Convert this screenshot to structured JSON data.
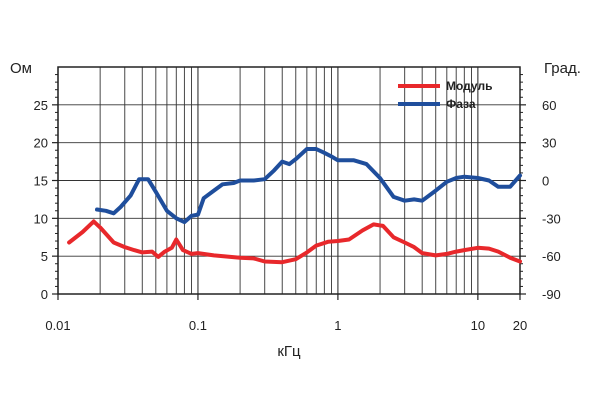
{
  "chart_data": {
    "type": "line",
    "xlabel": "кГц",
    "x_scale": "log",
    "xlim": [
      0.01,
      20
    ],
    "x_ticks": [
      {
        "value": 0.01,
        "label": "0.01"
      },
      {
        "value": 0.1,
        "label": "0.1"
      },
      {
        "value": 1,
        "label": "1"
      },
      {
        "value": 10,
        "label": "10"
      },
      {
        "value": 20,
        "label": "20"
      }
    ],
    "y_left": {
      "label": "Ом",
      "lim": [
        0,
        30
      ],
      "ticks": [
        0,
        5,
        10,
        15,
        20,
        25
      ]
    },
    "y_right": {
      "label": "Град.",
      "lim": [
        -90,
        90
      ],
      "ticks": [
        -90,
        -60,
        -30,
        0,
        30,
        60
      ]
    },
    "grid": true,
    "legend_position": "top-right",
    "series": [
      {
        "name": "Модуль",
        "axis": "left",
        "color": "#e8282b",
        "points": [
          [
            0.012,
            6.8
          ],
          [
            0.015,
            8.2
          ],
          [
            0.018,
            9.6
          ],
          [
            0.02,
            8.8
          ],
          [
            0.025,
            6.8
          ],
          [
            0.03,
            6.2
          ],
          [
            0.035,
            5.8
          ],
          [
            0.04,
            5.5
          ],
          [
            0.047,
            5.6
          ],
          [
            0.052,
            4.9
          ],
          [
            0.058,
            5.6
          ],
          [
            0.065,
            6.1
          ],
          [
            0.07,
            7.2
          ],
          [
            0.078,
            5.8
          ],
          [
            0.09,
            5.3
          ],
          [
            0.1,
            5.4
          ],
          [
            0.13,
            5.1
          ],
          [
            0.2,
            4.8
          ],
          [
            0.25,
            4.7
          ],
          [
            0.3,
            4.3
          ],
          [
            0.4,
            4.2
          ],
          [
            0.5,
            4.6
          ],
          [
            0.6,
            5.5
          ],
          [
            0.7,
            6.4
          ],
          [
            0.85,
            6.9
          ],
          [
            1,
            7.0
          ],
          [
            1.2,
            7.2
          ],
          [
            1.5,
            8.4
          ],
          [
            1.8,
            9.2
          ],
          [
            2.1,
            9.0
          ],
          [
            2.5,
            7.5
          ],
          [
            3,
            6.8
          ],
          [
            3.5,
            6.2
          ],
          [
            4,
            5.4
          ],
          [
            5,
            5.1
          ],
          [
            6,
            5.3
          ],
          [
            7,
            5.6
          ],
          [
            8,
            5.8
          ],
          [
            10,
            6.1
          ],
          [
            12,
            6.0
          ],
          [
            14,
            5.6
          ],
          [
            17,
            4.8
          ],
          [
            20,
            4.3
          ]
        ]
      },
      {
        "name": "Фаза",
        "axis": "right",
        "color": "#1f4e9c",
        "points": [
          [
            0.019,
            -23
          ],
          [
            0.022,
            -24
          ],
          [
            0.025,
            -26
          ],
          [
            0.028,
            -21
          ],
          [
            0.033,
            -12
          ],
          [
            0.038,
            1
          ],
          [
            0.044,
            1
          ],
          [
            0.05,
            -9
          ],
          [
            0.06,
            -24
          ],
          [
            0.07,
            -30
          ],
          [
            0.08,
            -33
          ],
          [
            0.09,
            -28
          ],
          [
            0.1,
            -27
          ],
          [
            0.11,
            -14
          ],
          [
            0.13,
            -8
          ],
          [
            0.15,
            -3
          ],
          [
            0.18,
            -2
          ],
          [
            0.2,
            0
          ],
          [
            0.25,
            0
          ],
          [
            0.3,
            1
          ],
          [
            0.35,
            8
          ],
          [
            0.4,
            15
          ],
          [
            0.45,
            13
          ],
          [
            0.5,
            17
          ],
          [
            0.6,
            25
          ],
          [
            0.7,
            25
          ],
          [
            0.8,
            22
          ],
          [
            0.9,
            19
          ],
          [
            1,
            16
          ],
          [
            1.3,
            16
          ],
          [
            1.6,
            13
          ],
          [
            2,
            2
          ],
          [
            2.5,
            -13
          ],
          [
            3,
            -16
          ],
          [
            3.5,
            -15
          ],
          [
            4,
            -16
          ],
          [
            5,
            -8
          ],
          [
            6,
            -1
          ],
          [
            7,
            2
          ],
          [
            8,
            3
          ],
          [
            10,
            2
          ],
          [
            12,
            0
          ],
          [
            14,
            -5
          ],
          [
            17,
            -5
          ],
          [
            20,
            4
          ]
        ]
      }
    ]
  }
}
